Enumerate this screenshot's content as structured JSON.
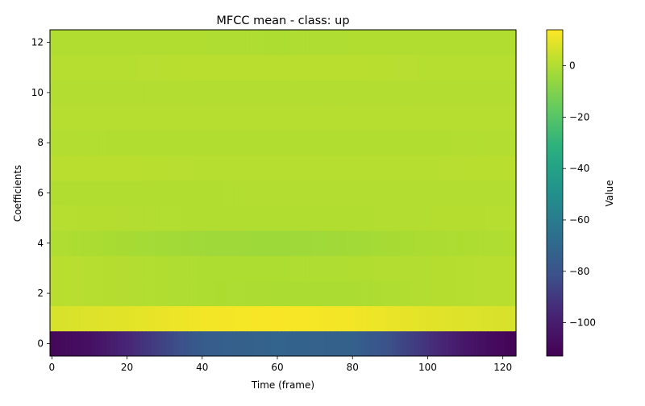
{
  "chart_data": {
    "type": "heatmap",
    "title": "MFCC mean - class: up",
    "xlabel": "Time (frame)",
    "ylabel": "Coefficients",
    "colorbar_label": "Value",
    "colormap": "viridis",
    "xlim": [
      -0.5,
      123.5
    ],
    "ylim": [
      -0.5,
      12.5
    ],
    "x_ticks": [
      0,
      20,
      40,
      60,
      80,
      100,
      120
    ],
    "y_ticks": [
      0,
      2,
      4,
      6,
      8,
      10,
      12
    ],
    "colorbar_range": [
      -113,
      14
    ],
    "colorbar_ticks": [
      0,
      -20,
      -40,
      -60,
      -80,
      -100
    ],
    "colorbar_tick_labels": [
      "0",
      "−20",
      "−40",
      "−60",
      "−80",
      "−100"
    ],
    "grid": false,
    "row_profiles": [
      {
        "coefficient": 0,
        "x": [
          0,
          10,
          20,
          30,
          40,
          60,
          80,
          90,
          100,
          110,
          123
        ],
        "values": [
          -110,
          -106,
          -96,
          -86,
          -76,
          -72,
          -74,
          -82,
          -92,
          -103,
          -112
        ]
      },
      {
        "coefficient": 1,
        "x": [
          0,
          20,
          40,
          60,
          80,
          100,
          123
        ],
        "values": [
          7,
          9,
          12,
          13,
          12,
          9,
          7
        ]
      },
      {
        "coefficient": 2,
        "x": [
          0,
          20,
          40,
          60,
          80,
          100,
          123
        ],
        "values": [
          1.5,
          0.5,
          -0.5,
          -1,
          -1,
          0.5,
          1.5
        ]
      },
      {
        "coefficient": 3,
        "x": [
          0,
          20,
          40,
          60,
          80,
          100,
          123
        ],
        "values": [
          1.5,
          0.5,
          -0.5,
          -0.5,
          0,
          0.5,
          1.5
        ]
      },
      {
        "coefficient": 4,
        "x": [
          0,
          20,
          40,
          60,
          80,
          100,
          123
        ],
        "values": [
          0,
          -2,
          -3.5,
          -4,
          -3,
          -1,
          0
        ]
      },
      {
        "coefficient": 5,
        "x": [
          0,
          20,
          40,
          60,
          80,
          100,
          123
        ],
        "values": [
          1,
          0.5,
          0,
          0,
          0,
          0.5,
          1
        ]
      },
      {
        "coefficient": 6,
        "x": [
          0,
          20,
          40,
          60,
          80,
          100,
          123
        ],
        "values": [
          0,
          0,
          0,
          0.5,
          0.5,
          0.5,
          0.5
        ]
      },
      {
        "coefficient": 7,
        "x": [
          0,
          20,
          40,
          60,
          80,
          100,
          123
        ],
        "values": [
          1.5,
          1.5,
          1,
          1,
          1,
          1,
          1.5
        ]
      },
      {
        "coefficient": 8,
        "x": [
          0,
          20,
          40,
          60,
          80,
          100,
          123
        ],
        "values": [
          0.5,
          0,
          0,
          0,
          0,
          0,
          0.5
        ]
      },
      {
        "coefficient": 9,
        "x": [
          0,
          20,
          40,
          60,
          80,
          100,
          123
        ],
        "values": [
          1,
          1,
          1,
          1,
          1,
          1,
          1
        ]
      },
      {
        "coefficient": 10,
        "x": [
          0,
          20,
          40,
          60,
          80,
          100,
          123
        ],
        "values": [
          0.5,
          0.5,
          0.5,
          0.5,
          0.5,
          0.5,
          0.5
        ]
      },
      {
        "coefficient": 11,
        "x": [
          0,
          20,
          40,
          60,
          80,
          100,
          123
        ],
        "values": [
          1,
          1,
          1.5,
          1.5,
          1.5,
          1,
          1
        ]
      },
      {
        "coefficient": 12,
        "x": [
          0,
          20,
          40,
          60,
          80,
          100,
          123
        ],
        "values": [
          0,
          0,
          0,
          -0.5,
          0,
          0,
          0
        ]
      }
    ]
  }
}
